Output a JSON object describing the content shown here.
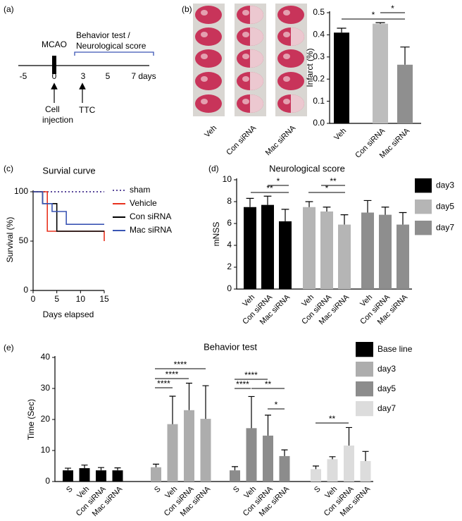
{
  "panel_labels": [
    "(a)",
    "(b)",
    "(c)",
    "(d)",
    "(e)"
  ],
  "timeline": {
    "event": "MCAO",
    "window": [
      "Behavior test /",
      "Neurological score"
    ],
    "ticks": [
      "-5",
      "0",
      "3",
      "5",
      "7 days"
    ],
    "cell_injection": [
      "Cell",
      "injection"
    ],
    "ttc": "TTC"
  },
  "image": {
    "labels": [
      "Veh",
      "Con siRNA",
      "Mac siRNA"
    ]
  },
  "chart_data": [
    {
      "type": "bar",
      "ylabel": "Infarct (%)",
      "categories": [
        "Veh",
        "Con siRNA",
        "Mac siRNA"
      ],
      "values": [
        0.41,
        0.45,
        0.265
      ],
      "errors": [
        0.02,
        0.005,
        0.08
      ],
      "colors": [
        "#000000",
        "#bdbdbd",
        "#8f8f8f"
      ],
      "ylim": [
        0,
        0.5
      ],
      "yticks": [
        {
          "value": 0,
          "label": "0.0"
        },
        0.1,
        0.2,
        0.3,
        0.4,
        0.5
      ],
      "annotations": [
        "*",
        "*"
      ]
    },
    {
      "type": "line",
      "title": "Survial curve",
      "xlabel": "Days elapsed",
      "ylabel": "Survival (%)",
      "xlim": [
        0,
        15
      ],
      "ylim": [
        0,
        100
      ],
      "xticks": [
        0,
        5,
        10,
        15
      ],
      "yticks": [
        0,
        50,
        100
      ],
      "series": [
        {
          "name": "sham",
          "color": "#5b4a9b",
          "style": "dotted",
          "x": [
            0,
            15
          ],
          "values": [
            100,
            100
          ]
        },
        {
          "name": "Vehicle",
          "color": "#e8321e",
          "style": "solid",
          "x": [
            0,
            3,
            3,
            15,
            15
          ],
          "values": [
            100,
            100,
            60,
            60,
            50
          ]
        },
        {
          "name": "Con siRNA",
          "color": "#000000",
          "style": "solid",
          "x": [
            0,
            2,
            2,
            5,
            5,
            15
          ],
          "values": [
            100,
            100,
            88,
            88,
            60,
            60
          ]
        },
        {
          "name": "Mac siRNA",
          "color": "#3a55b4",
          "style": "solid",
          "x": [
            0,
            2,
            2,
            4,
            4,
            7,
            7,
            15
          ],
          "values": [
            100,
            100,
            88,
            88,
            80,
            80,
            67,
            67
          ]
        }
      ]
    },
    {
      "type": "grouped-bar",
      "title": "Neurological score",
      "ylabel": "mNSS",
      "categories": [
        "Veh",
        "Con siRNA",
        "Mac siRNA"
      ],
      "series": [
        {
          "name": "day3",
          "color": "#000000",
          "values": [
            7.5,
            7.7,
            6.2
          ],
          "errors": [
            0.8,
            0.8,
            1.1
          ]
        },
        {
          "name": "day5",
          "color": "#b5b5b5",
          "values": [
            7.5,
            7.1,
            5.9
          ],
          "errors": [
            0.5,
            0.4,
            0.9
          ]
        },
        {
          "name": "day7",
          "color": "#8e8e8e",
          "values": [
            7.0,
            6.8,
            5.9
          ],
          "errors": [
            1.1,
            0.7,
            1.1
          ]
        }
      ],
      "ylim": [
        0,
        10
      ],
      "yticks": [
        0,
        2,
        4,
        6,
        8,
        10
      ],
      "annotations": [
        "*",
        "**",
        "**",
        "*"
      ]
    },
    {
      "type": "grouped-bar",
      "title": "Behavior test",
      "ylabel": "Time (Sec)",
      "categories": [
        "S",
        "Veh",
        "Con siRNA",
        "Mac siRNA"
      ],
      "series": [
        {
          "name": "Base line",
          "color": "#000000",
          "values": [
            3.6,
            4.3,
            3.6,
            3.6
          ],
          "errors": [
            0.7,
            1.0,
            0.9,
            0.8
          ]
        },
        {
          "name": "day3",
          "color": "#adadad",
          "values": [
            4.6,
            18.5,
            23,
            20.2
          ],
          "errors": [
            1.0,
            9.0,
            8.7,
            10.7
          ]
        },
        {
          "name": "day5",
          "color": "#8c8c8c",
          "values": [
            3.6,
            17.2,
            14.8,
            8.2
          ],
          "errors": [
            1.2,
            10.2,
            6.6,
            2.0
          ]
        },
        {
          "name": "day7",
          "color": "#dcdcdc",
          "values": [
            4.0,
            7.2,
            11.6,
            6.6
          ],
          "errors": [
            1.0,
            0.8,
            5.8,
            3.1
          ]
        }
      ],
      "ylim": [
        0,
        40
      ],
      "yticks": [
        0,
        10,
        20,
        30,
        40
      ],
      "annotations": [
        "****",
        "****",
        "****",
        "****",
        "****",
        "**",
        "*",
        "**"
      ]
    }
  ]
}
